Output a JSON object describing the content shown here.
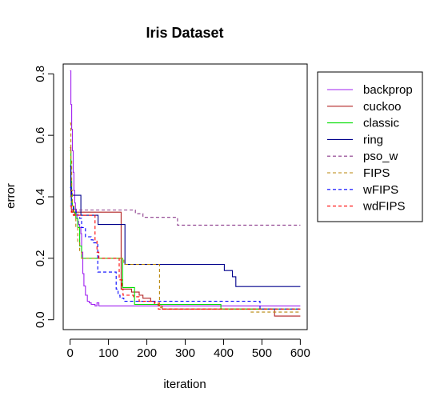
{
  "chart_data": {
    "type": "line",
    "title": "Iris Dataset",
    "xlabel": "iteration",
    "ylabel": "error",
    "xlim": [
      -18,
      618
    ],
    "ylim": [
      -0.032,
      0.832
    ],
    "xticks": [
      0,
      100,
      200,
      300,
      400,
      500,
      600
    ],
    "yticks": [
      0.0,
      0.2,
      0.4,
      0.6,
      0.8
    ],
    "xtick_labels": [
      "0",
      "100",
      "200",
      "300",
      "400",
      "500",
      "600"
    ],
    "ytick_labels": [
      "0.0",
      "0.2",
      "0.4",
      "0.6",
      "0.8"
    ],
    "grid": false,
    "legend_position": "right",
    "series": [
      {
        "name": "backprop",
        "color": "#a020f0",
        "dash": "solid",
        "x": [
          0,
          2,
          4,
          6,
          8,
          10,
          12,
          14,
          16,
          18,
          20,
          22,
          25,
          28,
          30,
          33,
          36,
          40,
          45,
          50,
          55,
          60,
          65,
          70,
          75,
          80,
          600
        ],
        "y": [
          0.81,
          0.7,
          0.62,
          0.55,
          0.48,
          0.42,
          0.38,
          0.36,
          0.34,
          0.33,
          0.32,
          0.31,
          0.3,
          0.28,
          0.22,
          0.15,
          0.11,
          0.08,
          0.06,
          0.055,
          0.05,
          0.05,
          0.045,
          0.055,
          0.045,
          0.045,
          0.045
        ]
      },
      {
        "name": "cuckoo",
        "color": "#b22222",
        "dash": "solid",
        "x": [
          0,
          2,
          3,
          5,
          8,
          10,
          12,
          15,
          20,
          30,
          60,
          130,
          133,
          160,
          170,
          180,
          190,
          200,
          210,
          220,
          230,
          240,
          290,
          530,
          533,
          600
        ],
        "y": [
          0.56,
          0.4,
          0.36,
          0.35,
          0.36,
          0.35,
          0.34,
          0.35,
          0.35,
          0.35,
          0.35,
          0.35,
          0.1,
          0.09,
          0.09,
          0.08,
          0.07,
          0.07,
          0.06,
          0.05,
          0.045,
          0.035,
          0.035,
          0.035,
          0.012,
          0.012
        ]
      },
      {
        "name": "classic",
        "color": "#00dd00",
        "dash": "solid",
        "x": [
          0,
          2,
          4,
          6,
          10,
          15,
          20,
          25,
          30,
          35,
          60,
          135,
          137,
          165,
          168,
          390,
          393,
          600
        ],
        "y": [
          0.55,
          0.45,
          0.38,
          0.37,
          0.35,
          0.33,
          0.3,
          0.24,
          0.2,
          0.2,
          0.2,
          0.2,
          0.105,
          0.105,
          0.05,
          0.05,
          0.035,
          0.035
        ]
      },
      {
        "name": "ring",
        "color": "#00008b",
        "dash": "solid",
        "x": [
          0,
          2,
          4,
          6,
          25,
          28,
          70,
          73,
          140,
          143,
          300,
          400,
          402,
          420,
          423,
          430,
          432,
          600
        ],
        "y": [
          0.5,
          0.42,
          0.41,
          0.405,
          0.405,
          0.34,
          0.34,
          0.31,
          0.31,
          0.18,
          0.18,
          0.18,
          0.16,
          0.16,
          0.14,
          0.14,
          0.108,
          0.108
        ]
      },
      {
        "name": "pso_w",
        "color": "#8b3a8b",
        "dash": "dashed",
        "x": [
          0,
          3,
          8,
          15,
          40,
          170,
          190,
          260,
          280,
          600
        ],
        "y": [
          0.4,
          0.37,
          0.36,
          0.357,
          0.357,
          0.345,
          0.333,
          0.333,
          0.308,
          0.308
        ]
      },
      {
        "name": "FIPS",
        "color": "#b8860b",
        "dash": "dashed",
        "x": [
          0,
          2,
          4,
          6,
          10,
          15,
          20,
          25,
          30,
          35,
          40,
          60,
          140,
          230,
          233,
          240,
          300,
          460,
          470,
          600
        ],
        "y": [
          0.64,
          0.52,
          0.42,
          0.37,
          0.34,
          0.3,
          0.25,
          0.22,
          0.2,
          0.2,
          0.2,
          0.2,
          0.18,
          0.18,
          0.04,
          0.035,
          0.035,
          0.035,
          0.025,
          0.025
        ]
      },
      {
        "name": "wFIPS",
        "color": "#0000ff",
        "dash": "dashed",
        "x": [
          0,
          3,
          8,
          15,
          20,
          25,
          30,
          40,
          50,
          55,
          60,
          70,
          72,
          110,
          120,
          125,
          130,
          140,
          150,
          200,
          300,
          490,
          495,
          600
        ],
        "y": [
          0.43,
          0.37,
          0.36,
          0.35,
          0.34,
          0.33,
          0.3,
          0.27,
          0.27,
          0.26,
          0.25,
          0.25,
          0.155,
          0.155,
          0.1,
          0.08,
          0.07,
          0.06,
          0.06,
          0.06,
          0.06,
          0.06,
          0.035,
          0.035
        ]
      },
      {
        "name": "wdFIPS",
        "color": "#ff0000",
        "dash": "dashed",
        "x": [
          0,
          3,
          8,
          15,
          25,
          40,
          60,
          65,
          70,
          75,
          80,
          100,
          125,
          128,
          135,
          138,
          160,
          165,
          175,
          180,
          200,
          220,
          230,
          600
        ],
        "y": [
          0.37,
          0.35,
          0.34,
          0.34,
          0.34,
          0.34,
          0.34,
          0.26,
          0.22,
          0.2,
          0.2,
          0.2,
          0.2,
          0.13,
          0.1,
          0.08,
          0.08,
          0.075,
          0.075,
          0.06,
          0.06,
          0.055,
          0.035,
          0.035
        ]
      }
    ]
  }
}
